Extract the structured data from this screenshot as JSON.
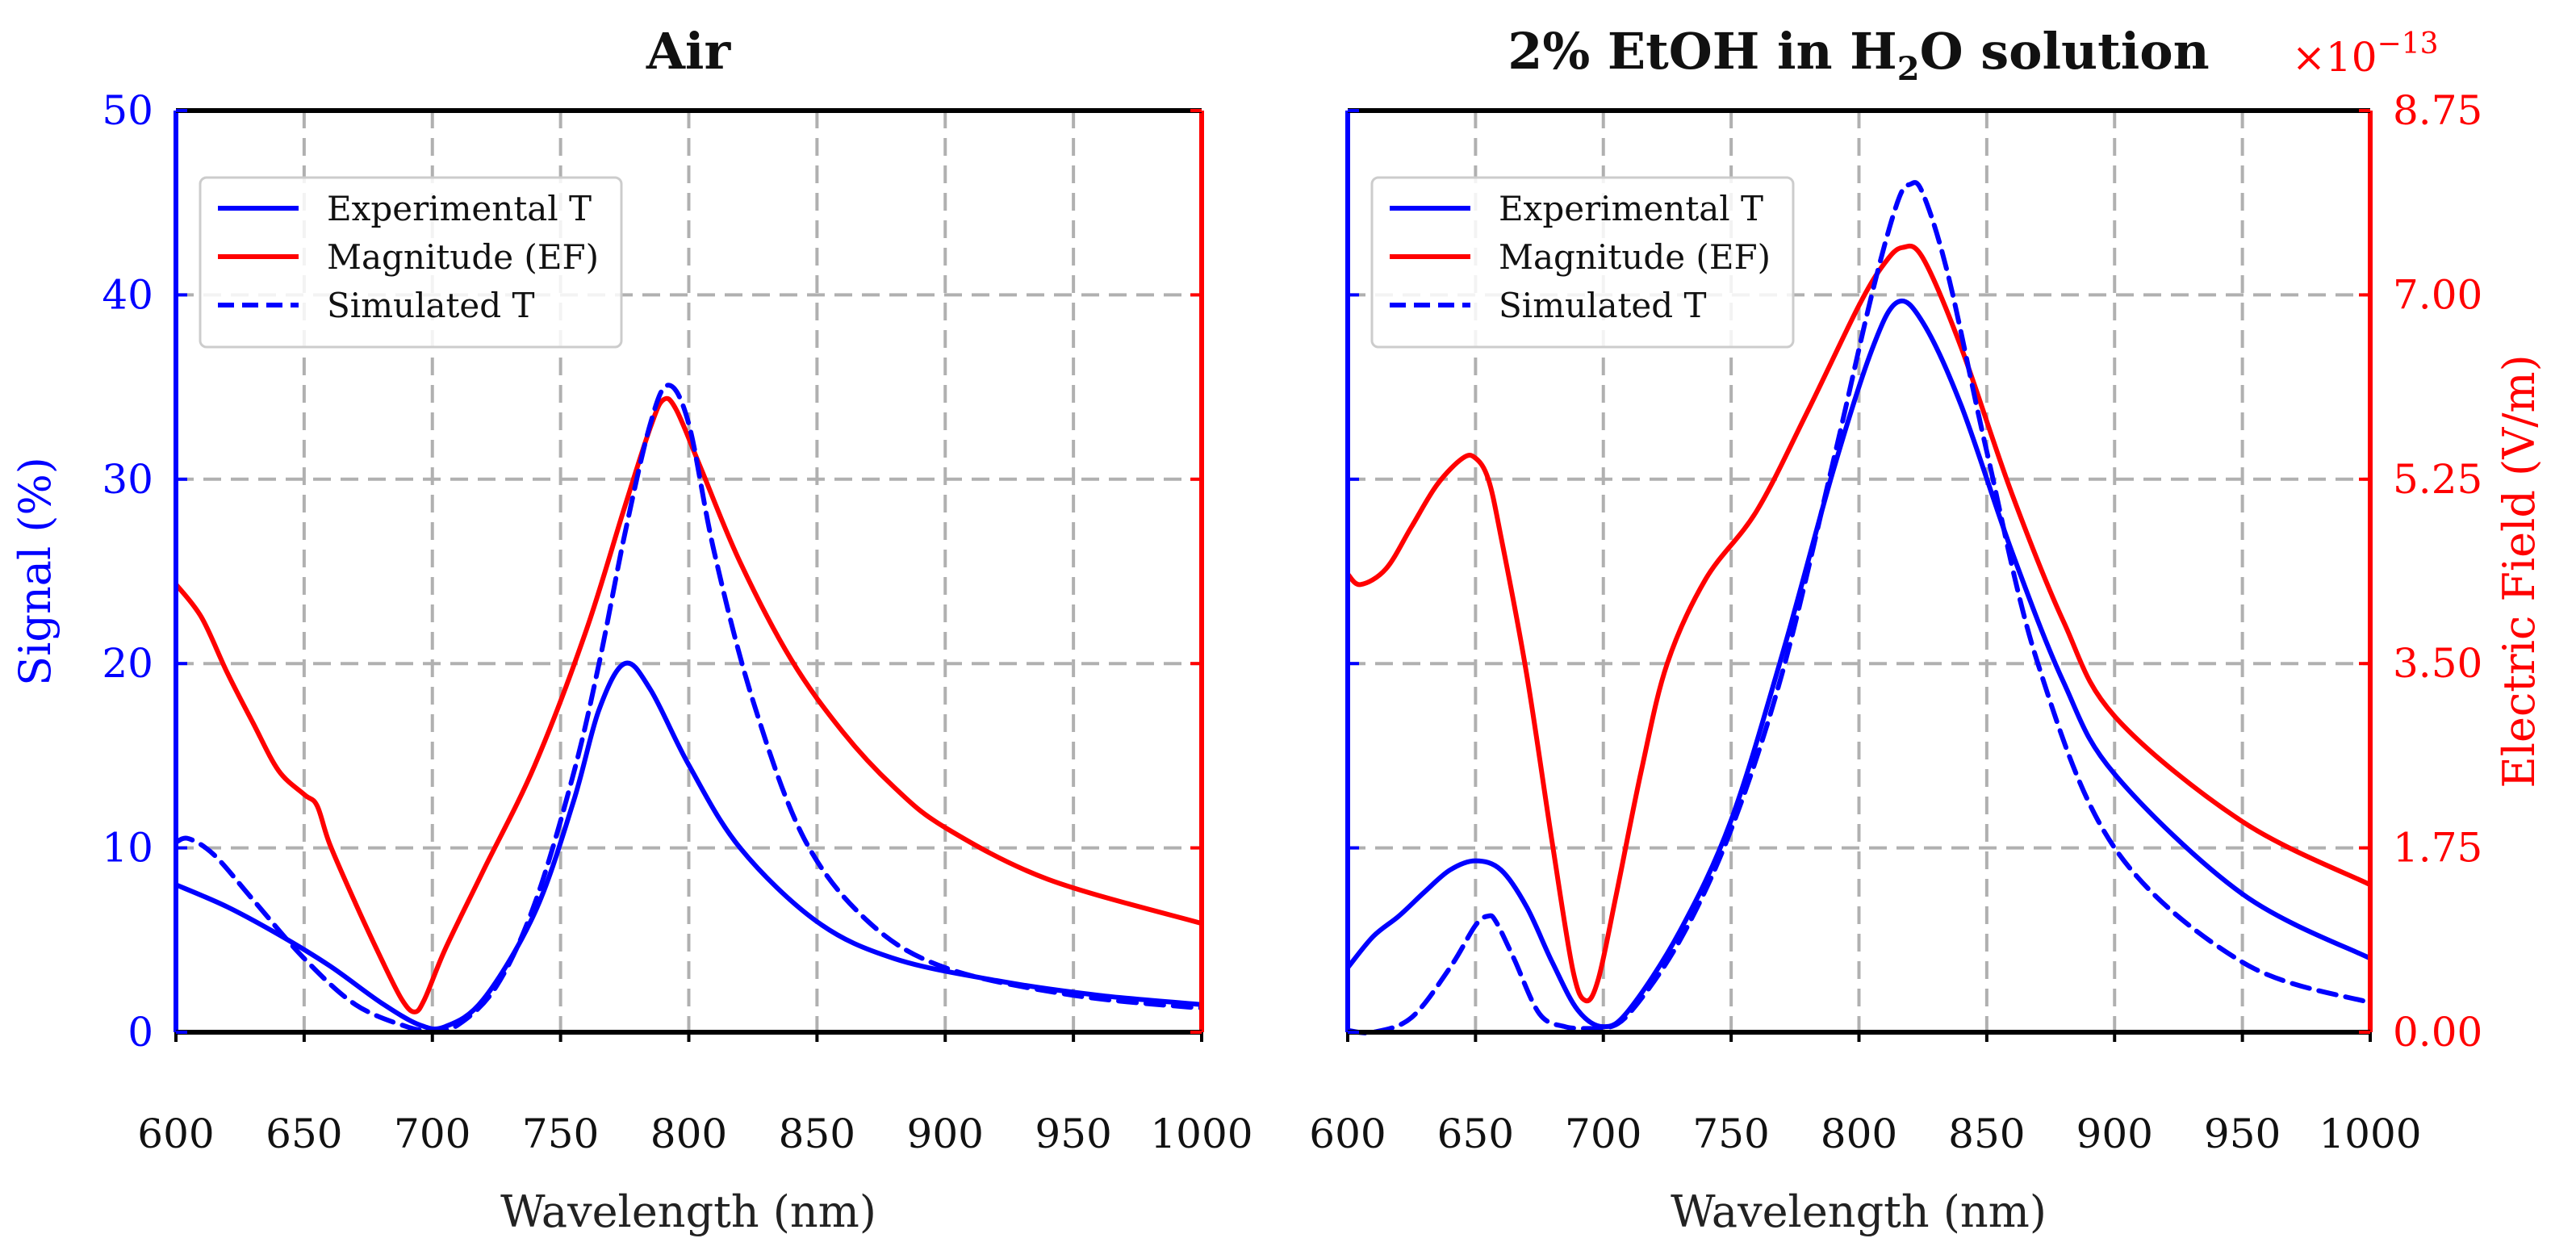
{
  "figure": {
    "colors": {
      "blue": "#0000ff",
      "red": "#ff0000",
      "grid": "#b0b0b0",
      "text": "#111111"
    }
  },
  "chart_data": [
    {
      "type": "line",
      "title": "Air",
      "xlabel": "Wavelength (nm)",
      "ylabel": "Signal (%)",
      "xlim": [
        600,
        1000
      ],
      "ylim": [
        0,
        50
      ],
      "xticks": [
        "600",
        "650",
        "700",
        "750",
        "800",
        "850",
        "900",
        "950",
        "1000"
      ],
      "yticks": [
        "0",
        "10",
        "20",
        "30",
        "40",
        "50"
      ],
      "grid": true,
      "legend": "top-left",
      "legend_entries": [
        {
          "label": "Experimental T",
          "color": "#0000ff",
          "style": "solid"
        },
        {
          "label": "Magnitude (EF)",
          "color": "#ff0000",
          "style": "solid"
        },
        {
          "label": "Simulated T",
          "color": "#0000ff",
          "style": "dashed"
        }
      ],
      "series": [
        {
          "name": "Experimental T",
          "axis": "left",
          "color": "#0000ff",
          "style": "solid",
          "x": [
            600,
            620,
            640,
            660,
            680,
            695,
            705,
            720,
            740,
            755,
            765,
            775,
            785,
            800,
            820,
            850,
            880,
            920,
            960,
            1000
          ],
          "y": [
            8.0,
            6.8,
            5.3,
            3.6,
            1.6,
            0.4,
            0.3,
            1.8,
            6.5,
            12.5,
            17.5,
            20.0,
            18.6,
            14.5,
            10.0,
            6.0,
            4.0,
            2.8,
            2.0,
            1.5
          ]
        },
        {
          "name": "Magnitude (EF)",
          "axis": "right",
          "color": "#ff0000",
          "style": "solid",
          "x": [
            600,
            610,
            620,
            630,
            640,
            650,
            655,
            660,
            670,
            680,
            688,
            693,
            697,
            705,
            720,
            740,
            760,
            775,
            785,
            790,
            795,
            805,
            820,
            840,
            860,
            880,
            900,
            940,
            1000
          ],
          "y": [
            24.3,
            22.5,
            19.5,
            16.8,
            14.2,
            12.9,
            12.3,
            10.2,
            7.0,
            4.0,
            1.8,
            1.1,
            1.8,
            4.5,
            8.8,
            14.5,
            21.8,
            28.5,
            32.8,
            34.3,
            33.8,
            30.5,
            25.5,
            20.2,
            16.3,
            13.3,
            11.1,
            8.3,
            5.9
          ],
          "note": "plotted against left scale; right axis shows Electric Field (V/m) ×10^-13"
        },
        {
          "name": "Simulated T",
          "axis": "left",
          "color": "#0000ff",
          "style": "dashed",
          "x": [
            600,
            605,
            615,
            630,
            650,
            670,
            690,
            700,
            710,
            725,
            740,
            755,
            765,
            775,
            785,
            792,
            800,
            810,
            825,
            845,
            870,
            900,
            950,
            1000
          ],
          "y": [
            10.3,
            10.5,
            9.6,
            7.2,
            4.0,
            1.5,
            0.3,
            0.1,
            0.4,
            2.5,
            7.0,
            14.0,
            20.0,
            27.0,
            33.0,
            35.1,
            33.0,
            26.0,
            18.0,
            10.5,
            6.0,
            3.5,
            2.0,
            1.3
          ]
        }
      ]
    },
    {
      "type": "line",
      "title": "2% EtOH in H",
      "title_sub": "2",
      "title_tail": "O solution",
      "xlabel": "Wavelength (nm)",
      "ylabel_right": "Electric Field (V/m)",
      "right_axis_multiplier": "×10",
      "right_axis_exponent": "−13",
      "xlim": [
        600,
        1000
      ],
      "ylim": [
        0,
        50
      ],
      "ylim_right": [
        0,
        8.75
      ],
      "xticks": [
        "600",
        "650",
        "700",
        "750",
        "800",
        "850",
        "900",
        "950",
        "1000"
      ],
      "yticks_right": [
        "0.00",
        "1.75",
        "3.50",
        "5.25",
        "7.00",
        "8.75"
      ],
      "grid": true,
      "legend": "top-left",
      "legend_entries": [
        {
          "label": "Experimental T",
          "color": "#0000ff",
          "style": "solid"
        },
        {
          "label": "Magnitude (EF)",
          "color": "#ff0000",
          "style": "solid"
        },
        {
          "label": "Simulated T",
          "color": "#0000ff",
          "style": "dashed"
        }
      ],
      "series": [
        {
          "name": "Experimental T",
          "axis": "left",
          "color": "#0000ff",
          "style": "solid",
          "x": [
            600,
            610,
            620,
            630,
            640,
            650,
            660,
            670,
            680,
            690,
            700,
            710,
            730,
            750,
            770,
            790,
            805,
            815,
            825,
            840,
            860,
            880,
            900,
            950,
            1000
          ],
          "y": [
            3.5,
            5.2,
            6.3,
            7.6,
            8.8,
            9.3,
            8.8,
            6.8,
            3.8,
            1.2,
            0.3,
            1.2,
            5.5,
            11.5,
            20.5,
            30.5,
            37.0,
            39.6,
            38.5,
            34.0,
            26.0,
            19.0,
            14.0,
            7.5,
            4.0
          ]
        },
        {
          "name": "Magnitude (EF)",
          "axis": "right",
          "color": "#ff0000",
          "style": "solid",
          "x": [
            600,
            605,
            615,
            625,
            635,
            645,
            650,
            655,
            660,
            670,
            680,
            688,
            693,
            698,
            705,
            715,
            725,
            740,
            760,
            780,
            800,
            810,
            817,
            825,
            840,
            860,
            880,
            900,
            950,
            1000
          ],
          "y": [
            4.35,
            4.25,
            4.4,
            4.8,
            5.2,
            5.45,
            5.45,
            5.25,
            4.7,
            3.4,
            1.8,
            0.6,
            0.3,
            0.5,
            1.3,
            2.5,
            3.5,
            4.3,
            4.95,
            5.9,
            6.9,
            7.3,
            7.45,
            7.35,
            6.5,
            5.1,
            3.9,
            3.0,
            2.0,
            1.4
          ]
        },
        {
          "name": "Simulated T",
          "axis": "left",
          "color": "#0000ff",
          "style": "dashed",
          "x": [
            600,
            610,
            625,
            640,
            650,
            655,
            658,
            665,
            675,
            685,
            695,
            700,
            710,
            730,
            750,
            770,
            790,
            805,
            815,
            820,
            825,
            835,
            850,
            870,
            900,
            950,
            1000
          ],
          "y": [
            0.1,
            0.0,
            0.8,
            3.5,
            5.8,
            6.3,
            6.0,
            4.0,
            1.0,
            0.3,
            0.2,
            0.2,
            1.0,
            5.0,
            11.0,
            19.5,
            31.0,
            40.0,
            45.0,
            46.0,
            45.5,
            41.0,
            31.5,
            20.0,
            10.0,
            3.8,
            1.6
          ]
        }
      ]
    }
  ]
}
